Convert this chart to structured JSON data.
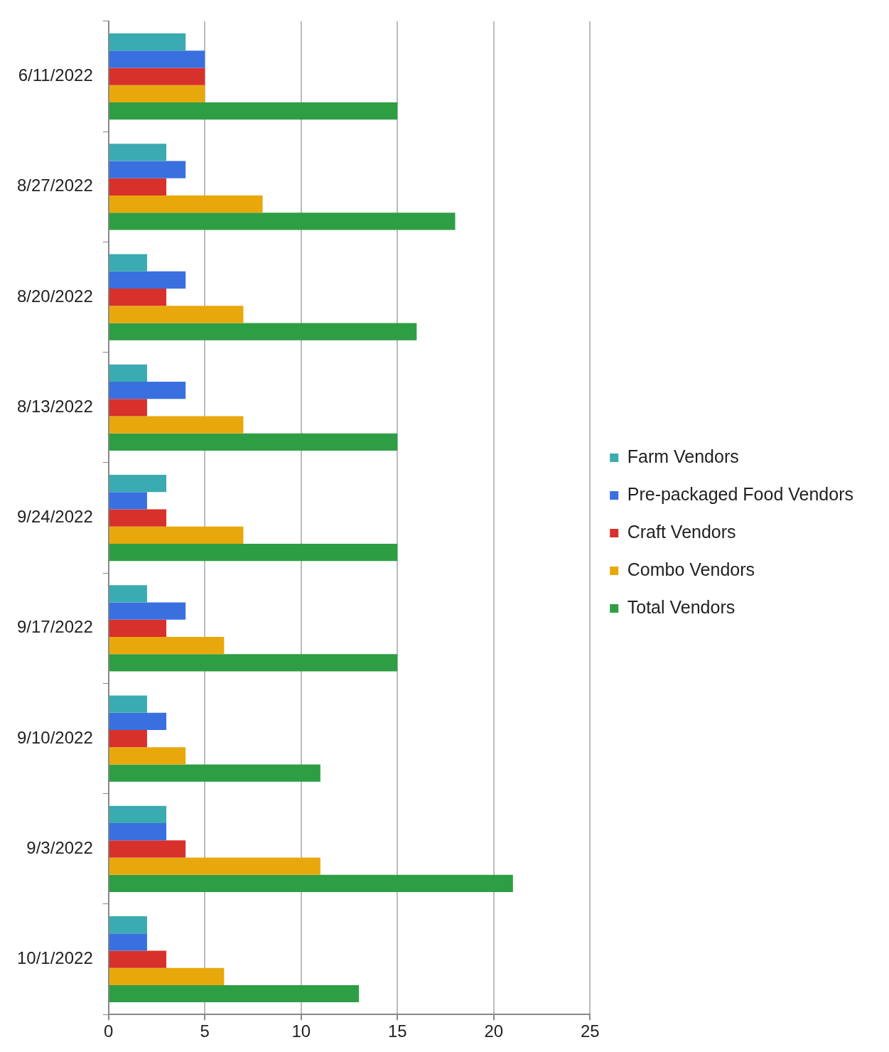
{
  "chart_data": {
    "type": "bar",
    "orientation": "horizontal",
    "categories": [
      "6/11/2022",
      "8/27/2022",
      "8/20/2022",
      "8/13/2022",
      "9/24/2022",
      "9/17/2022",
      "9/10/2022",
      "9/3/2022",
      "10/1/2022"
    ],
    "series": [
      {
        "name": "Farm Vendors",
        "color": "#3aabb0",
        "values": [
          4,
          3,
          2,
          2,
          3,
          2,
          2,
          3,
          2
        ]
      },
      {
        "name": "Pre-packaged Food Vendors",
        "color": "#3a6fe0",
        "values": [
          5,
          4,
          4,
          4,
          2,
          4,
          3,
          3,
          2
        ]
      },
      {
        "name": "Craft Vendors",
        "color": "#d8302a",
        "values": [
          5,
          3,
          3,
          2,
          3,
          3,
          2,
          4,
          3
        ]
      },
      {
        "name": "Combo Vendors",
        "color": "#e8a80c",
        "values": [
          5,
          8,
          7,
          7,
          7,
          6,
          4,
          11,
          6
        ]
      },
      {
        "name": "Total Vendors",
        "color": "#2e9e44",
        "values": [
          15,
          18,
          16,
          15,
          15,
          15,
          11,
          21,
          13
        ]
      }
    ],
    "xlim": [
      0,
      25
    ],
    "xticks": [
      0,
      5,
      10,
      15,
      20,
      25
    ],
    "grid": "x",
    "legend": "right"
  }
}
